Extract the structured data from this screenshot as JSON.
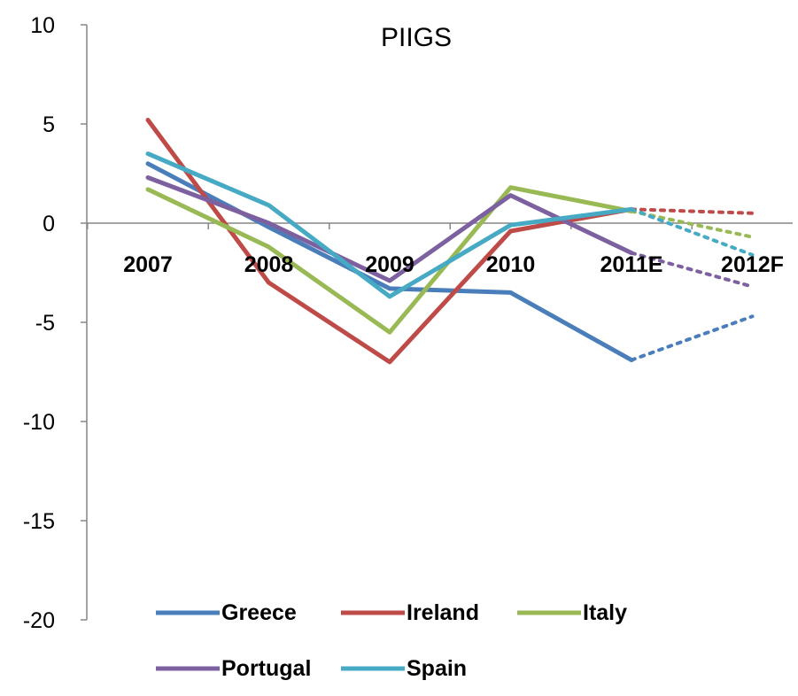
{
  "chart_data": {
    "type": "line",
    "title": "PIIGS",
    "xlabel": "",
    "ylabel": "",
    "categories": [
      "2007",
      "2008",
      "2009",
      "2010",
      "2011E",
      "2012F"
    ],
    "ylim": [
      -20,
      10
    ],
    "yticks": [
      10,
      5,
      0,
      -5,
      -10,
      -15,
      -20
    ],
    "grid": false,
    "legend_position": "bottom",
    "forecast_style": "dotted segment from 2011E to 2012F",
    "series": [
      {
        "name": "Greece",
        "color": "#4a7ebb",
        "values": [
          3.0,
          -0.2,
          -3.3,
          -3.5,
          -6.9,
          -4.7
        ]
      },
      {
        "name": "Ireland",
        "color": "#be4b48",
        "values": [
          5.2,
          -3.0,
          -7.0,
          -0.4,
          0.7,
          0.5
        ]
      },
      {
        "name": "Italy",
        "color": "#98b954",
        "values": [
          1.7,
          -1.2,
          -5.5,
          1.8,
          0.6,
          -0.7
        ]
      },
      {
        "name": "Portugal",
        "color": "#7d60a0",
        "values": [
          2.3,
          0.0,
          -2.9,
          1.4,
          -1.5,
          -3.2
        ]
      },
      {
        "name": "Spain",
        "color": "#46aac5",
        "values": [
          3.5,
          0.9,
          -3.7,
          -0.1,
          0.7,
          -1.6
        ]
      }
    ]
  }
}
